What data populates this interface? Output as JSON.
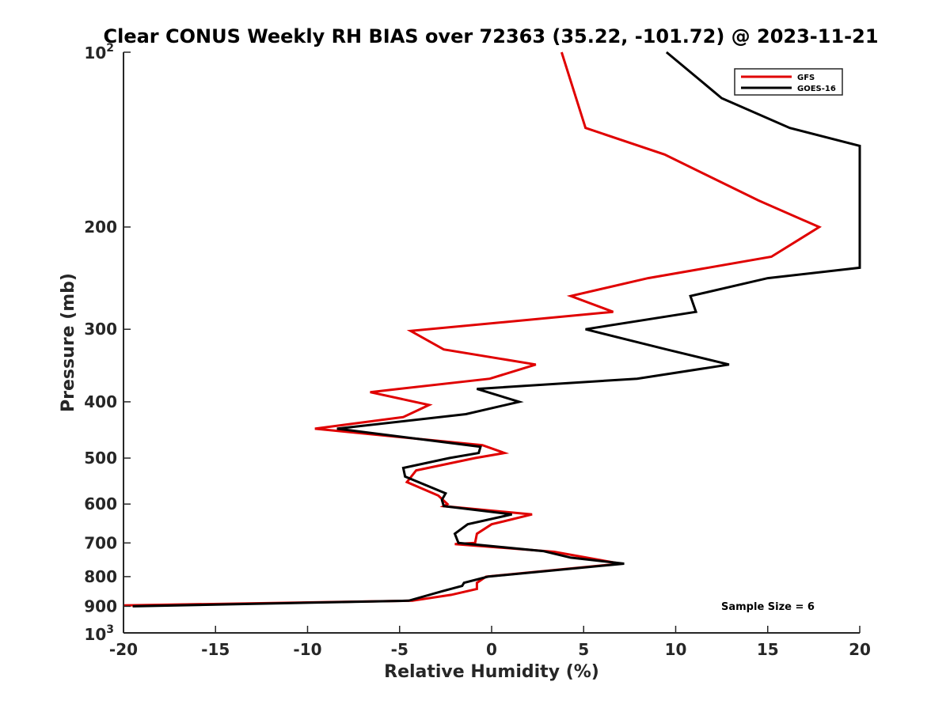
{
  "chart_data": {
    "type": "line",
    "title": "Clear CONUS Weekly RH BIAS over 72363 (35.22, -101.72) @ 2023-11-21",
    "xlabel": "Relative Humidity (%)",
    "ylabel": "Pressure (mb)",
    "xlim": [
      -20,
      20
    ],
    "ylim": [
      100,
      1000
    ],
    "yscale": "log",
    "yreversed": true,
    "x_ticks": [
      -20,
      -15,
      -10,
      -5,
      0,
      5,
      10,
      15,
      20
    ],
    "x_tick_labels": [
      "-20",
      "-15",
      "-10",
      "-5",
      "0",
      "5",
      "10",
      "15",
      "20"
    ],
    "y_ticks": [
      200,
      300,
      400,
      500,
      600,
      700,
      800,
      900
    ],
    "y_tick_labels": [
      "200",
      "300",
      "400",
      "500",
      "600",
      "700",
      "800",
      "900"
    ],
    "y_tick_top": {
      "base": "10",
      "exp": "2"
    },
    "y_tick_bottom": {
      "base": "10",
      "exp": "3"
    },
    "legend_position": "top-right",
    "annotation": "Sample Size = 6",
    "series": [
      {
        "name": "GFS",
        "color": "#e00000",
        "points": [
          [
            3.8,
            100
          ],
          [
            5.1,
            135
          ],
          [
            9.4,
            150
          ],
          [
            14.5,
            180
          ],
          [
            17.8,
            200
          ],
          [
            15.2,
            225
          ],
          [
            8.5,
            245
          ],
          [
            4.3,
            263
          ],
          [
            6.6,
            280
          ],
          [
            -4.4,
            302
          ],
          [
            -2.6,
            325
          ],
          [
            2.4,
            345
          ],
          [
            -0.1,
            365
          ],
          [
            -6.6,
            385
          ],
          [
            -3.4,
            405
          ],
          [
            -4.8,
            425
          ],
          [
            -9.6,
            445
          ],
          [
            -0.5,
            475
          ],
          [
            0.7,
            490
          ],
          [
            -0.9,
            500
          ],
          [
            -4.1,
            525
          ],
          [
            -4.6,
            550
          ],
          [
            -2.9,
            580
          ],
          [
            -2.4,
            600
          ],
          [
            -2.6,
            605
          ],
          [
            2.2,
            625
          ],
          [
            0,
            650
          ],
          [
            -0.8,
            675
          ],
          [
            -0.9,
            700
          ],
          [
            -2.0,
            703
          ],
          [
            3.4,
            725
          ],
          [
            7.0,
            760
          ],
          [
            -0.3,
            800
          ],
          [
            -0.8,
            820
          ],
          [
            -0.8,
            840
          ],
          [
            -2.2,
            860
          ],
          [
            -4.3,
            880
          ],
          [
            -20,
            897
          ]
        ]
      },
      {
        "name": "GOES-16",
        "color": "#000000",
        "points": [
          [
            9.5,
            100
          ],
          [
            12.5,
            120
          ],
          [
            16.2,
            135
          ],
          [
            20,
            145
          ],
          [
            20,
            235
          ],
          [
            15.0,
            245
          ],
          [
            10.8,
            263
          ],
          [
            11.1,
            280
          ],
          [
            5.1,
            300
          ],
          [
            9.5,
            325
          ],
          [
            12.9,
            345
          ],
          [
            7.9,
            365
          ],
          [
            -0.8,
            380
          ],
          [
            1.5,
            400
          ],
          [
            -1.4,
            420
          ],
          [
            -8.4,
            445
          ],
          [
            -0.6,
            478
          ],
          [
            -0.7,
            490
          ],
          [
            -2.3,
            500
          ],
          [
            -4.8,
            520
          ],
          [
            -4.7,
            538
          ],
          [
            -2.5,
            575
          ],
          [
            -2.7,
            590
          ],
          [
            -2.6,
            605
          ],
          [
            1.1,
            625
          ],
          [
            -1.3,
            650
          ],
          [
            -2.0,
            675
          ],
          [
            -1.8,
            700
          ],
          [
            2.8,
            723
          ],
          [
            4.3,
            742
          ],
          [
            7.2,
            760
          ],
          [
            -0.2,
            800
          ],
          [
            -1.5,
            820
          ],
          [
            -1.6,
            830
          ],
          [
            -2.7,
            848
          ],
          [
            -4.5,
            880
          ],
          [
            -19.5,
            900
          ]
        ]
      }
    ]
  }
}
